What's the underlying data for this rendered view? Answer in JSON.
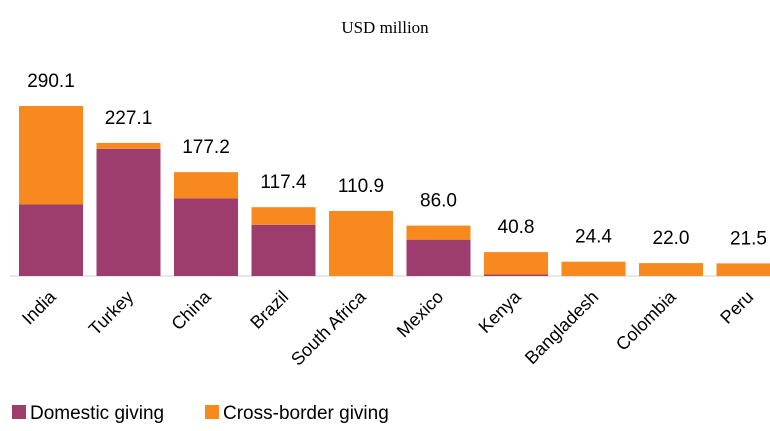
{
  "chart_data": {
    "type": "bar",
    "stacked": true,
    "title": "USD million",
    "categories": [
      "India",
      "Turkey",
      "China",
      "Brazil",
      "South Africa",
      "Mexico",
      "Kenya",
      "Bangladesh",
      "Colombia",
      "Peru"
    ],
    "totals": [
      "290.1",
      "227.1",
      "177.2",
      "117.4",
      "110.9",
      "86.0",
      "40.8",
      "24.4",
      "22.0",
      "21.5"
    ],
    "series": [
      {
        "name": "Domestic giving",
        "color": "#9c3d6e",
        "values": [
          122.1,
          217.1,
          132.2,
          87.4,
          0.0,
          62.0,
          2.5,
          0.0,
          0.0,
          0.0
        ]
      },
      {
        "name": "Cross-border giving",
        "color": "#f7891e",
        "values": [
          168.0,
          10.0,
          45.0,
          30.0,
          110.9,
          24.0,
          38.3,
          24.4,
          22.0,
          21.5
        ]
      }
    ],
    "ylim": [
      0,
      290.1
    ],
    "legend_position": "bottom-left",
    "grid": false
  }
}
